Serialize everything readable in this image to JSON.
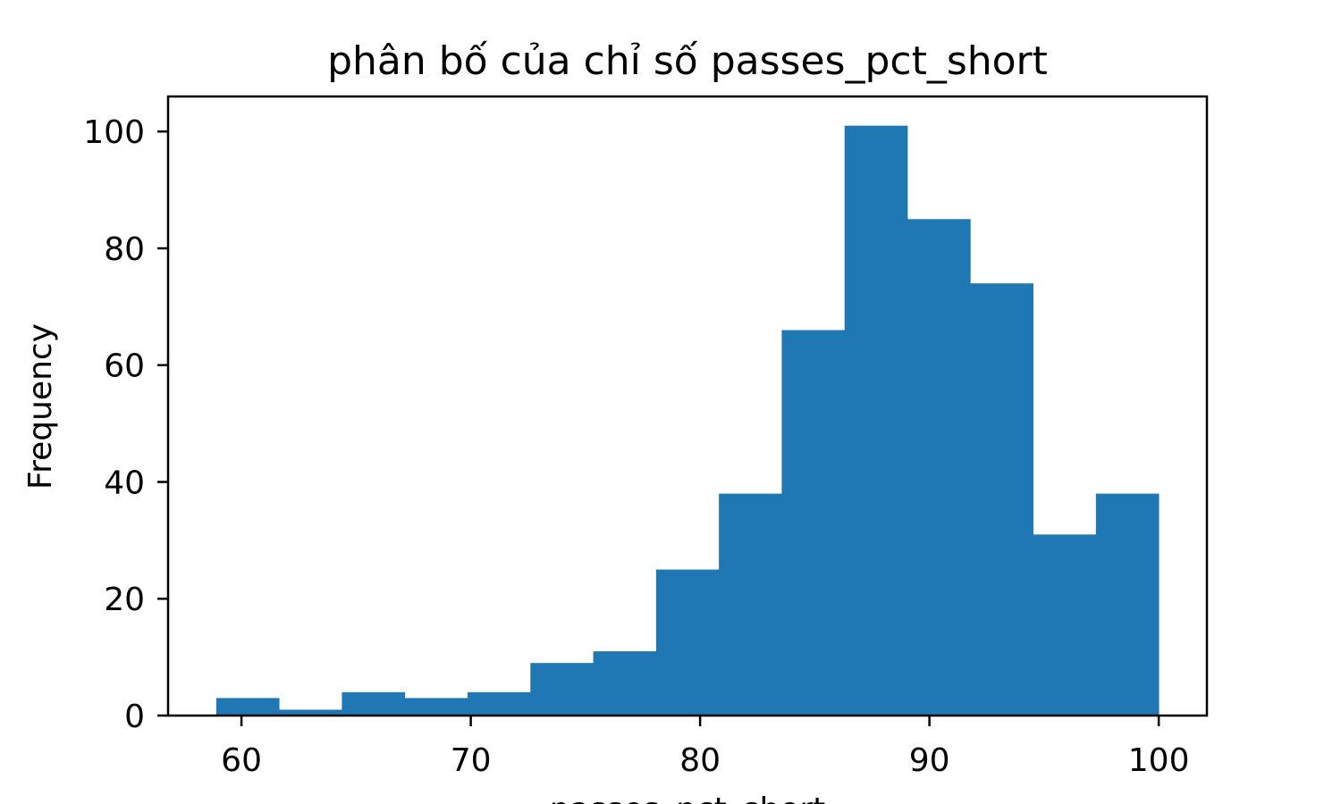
{
  "chart_data": {
    "type": "bar",
    "subtype": "histogram",
    "title": "phân bố của chỉ số passes_pct_short",
    "xlabel": "passes_pct_short",
    "ylabel": "Frequency",
    "xlim": [
      56.8,
      102.1
    ],
    "ylim": [
      0,
      106
    ],
    "xticks": [
      60,
      70,
      80,
      90,
      100
    ],
    "yticks": [
      0,
      20,
      40,
      60,
      80,
      100
    ],
    "bin_edges": [
      58.9,
      61.64,
      64.38,
      67.12,
      69.86,
      72.6,
      75.34,
      78.08,
      80.82,
      83.56,
      86.3,
      89.04,
      91.78,
      94.52,
      97.26,
      100.0
    ],
    "values": [
      3,
      1,
      4,
      3,
      4,
      9,
      11,
      25,
      38,
      66,
      101,
      85,
      74,
      31,
      38
    ],
    "bar_color": "#1f77b4",
    "grid": false,
    "legend": "none"
  }
}
